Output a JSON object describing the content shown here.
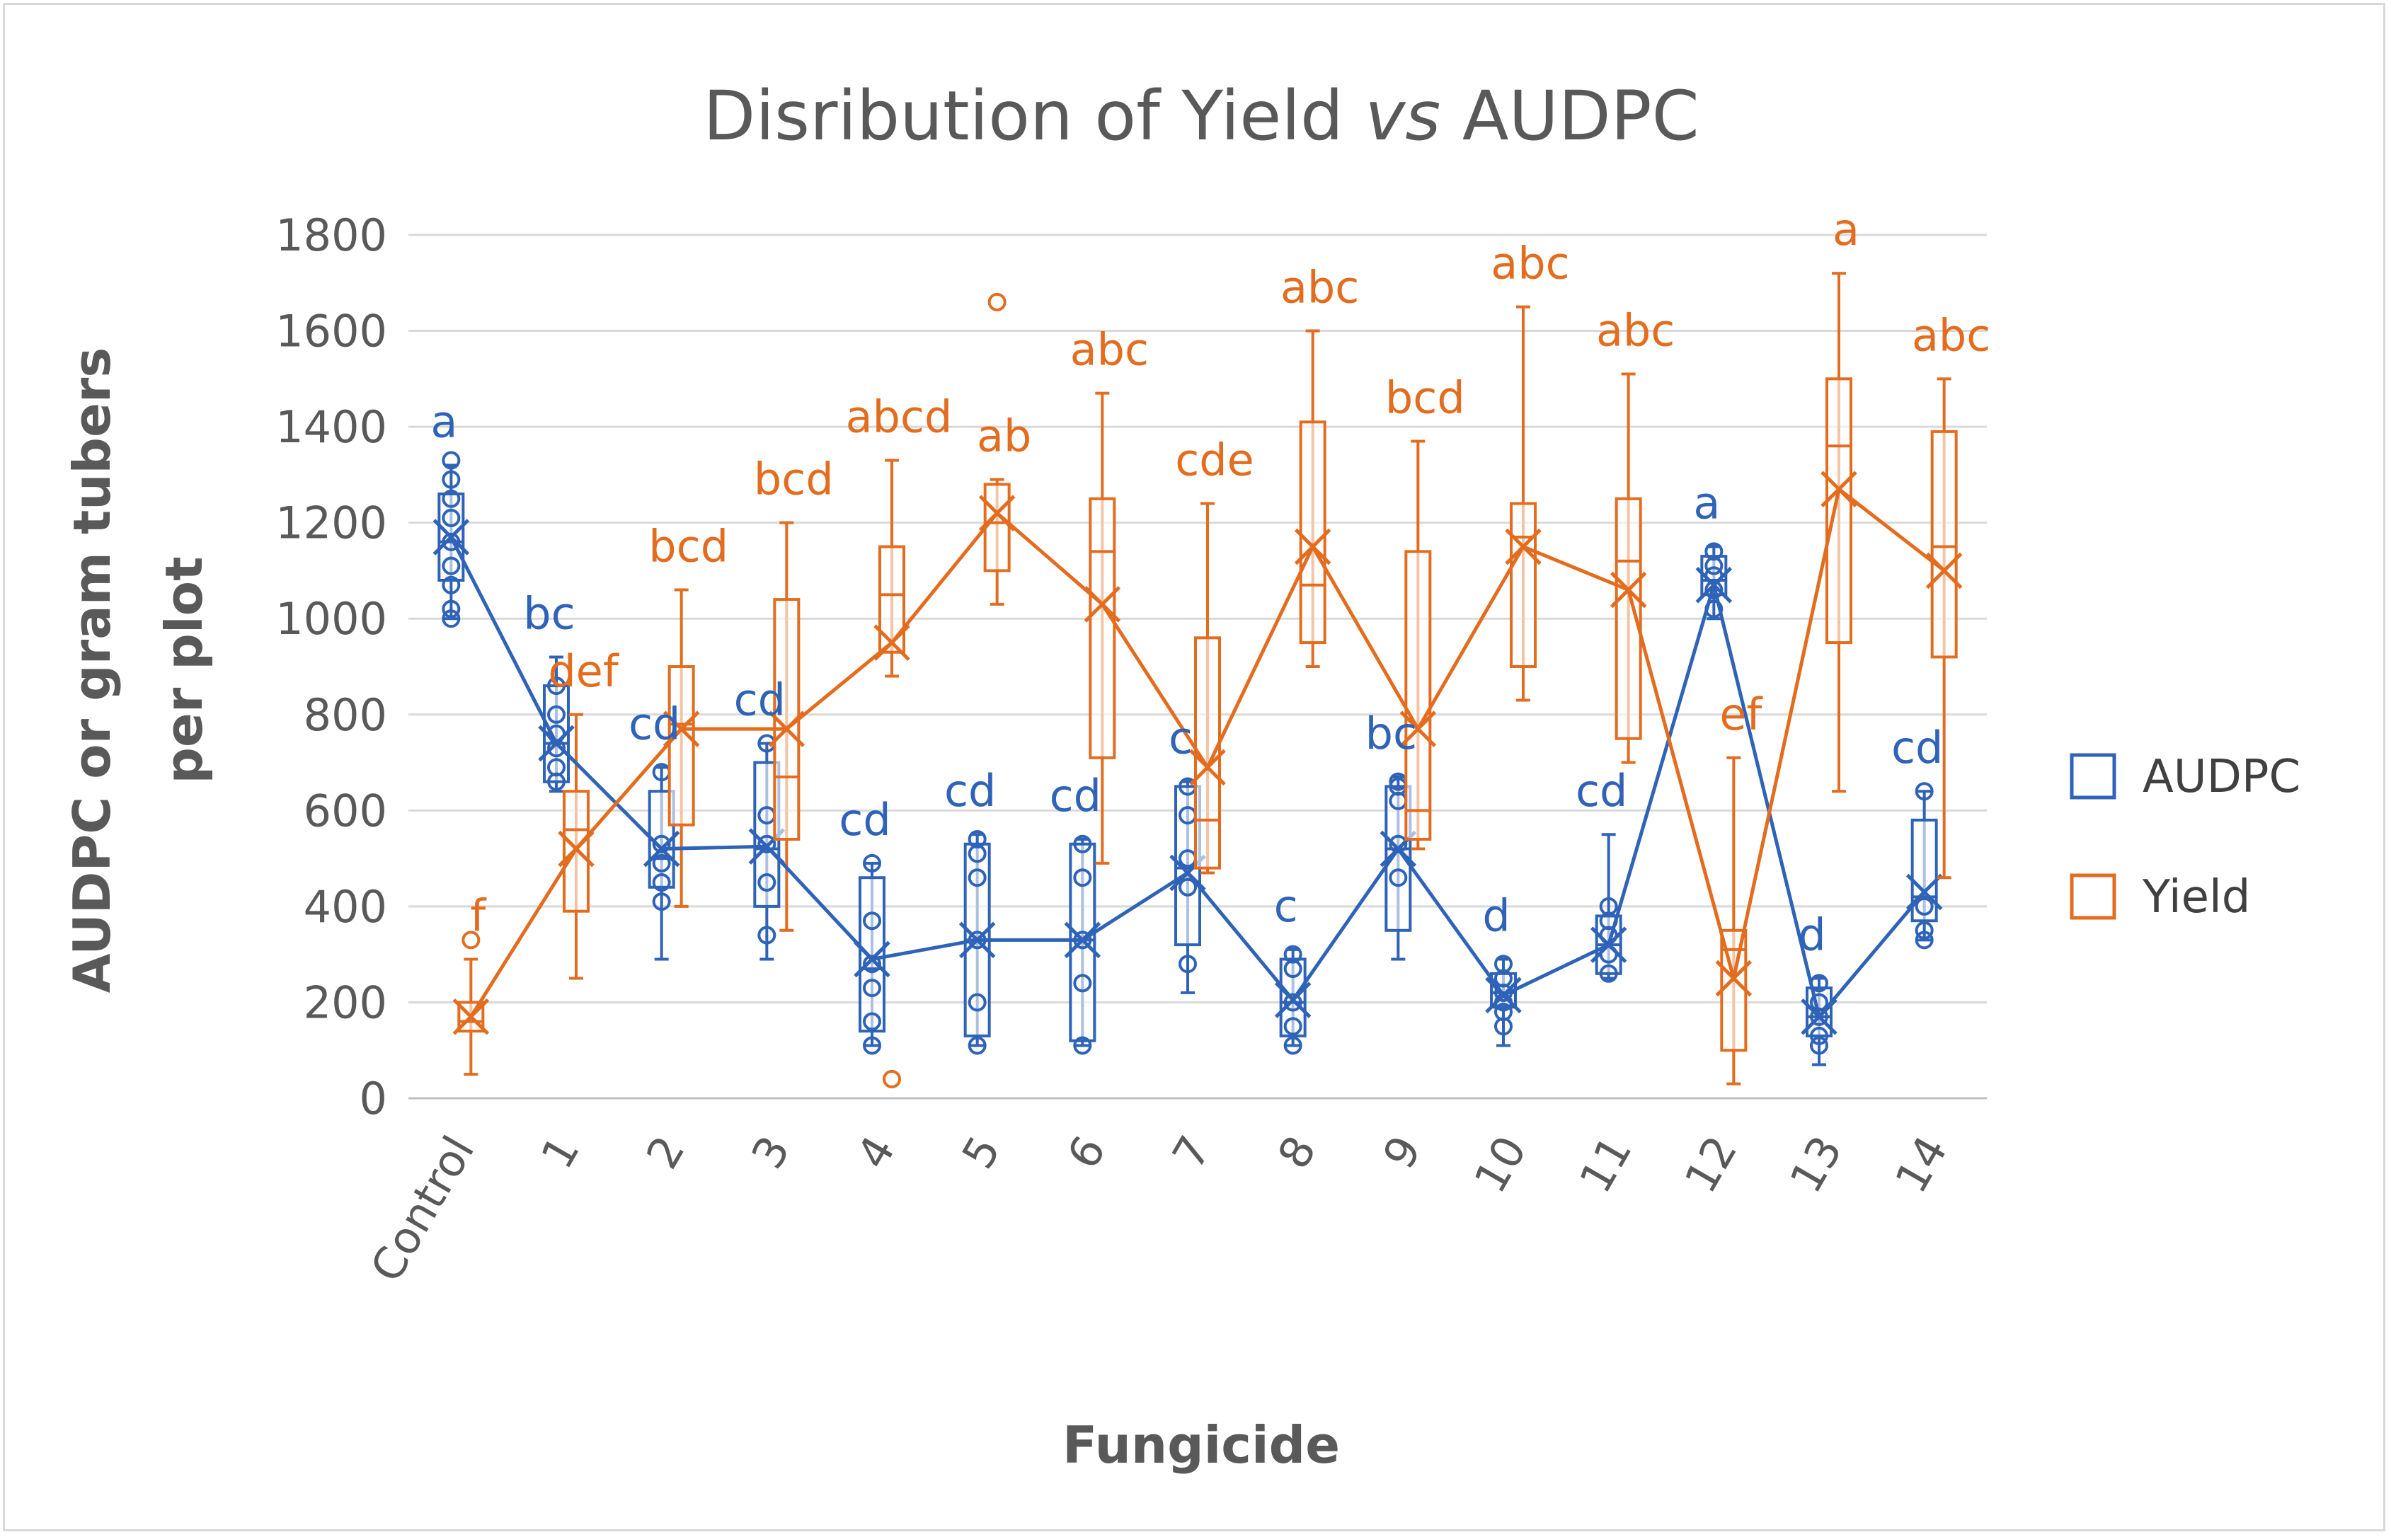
{
  "chart_data": {
    "type": "box",
    "title_parts": [
      "Disribution of Yield ",
      "vs",
      " AUDPC"
    ],
    "xlabel": "Fungicide",
    "ylabel_lines": [
      "AUDPC or gram tubers",
      "per plot"
    ],
    "ylim": [
      0,
      1800
    ],
    "yticks": [
      0,
      200,
      400,
      600,
      800,
      1000,
      1200,
      1400,
      1600,
      1800
    ],
    "gridlines": true,
    "legend_position": "right",
    "categories": [
      "Control",
      "1",
      "2",
      "3",
      "4",
      "5",
      "6",
      "7",
      "8",
      "9",
      "10",
      "11",
      "12",
      "13",
      "14"
    ],
    "series": [
      {
        "name": "AUDPC",
        "color": "#2e63b8",
        "means": [
          1170,
          740,
          520,
          525,
          290,
          330,
          330,
          470,
          205,
          520,
          215,
          320,
          1070,
          170,
          430
        ],
        "q1": [
          1080,
          660,
          440,
          400,
          140,
          130,
          120,
          320,
          130,
          350,
          190,
          260,
          1050,
          130,
          370
        ],
        "median": [
          1160,
          740,
          500,
          520,
          270,
          330,
          330,
          480,
          200,
          520,
          220,
          320,
          1080,
          170,
          420
        ],
        "q3": [
          1260,
          860,
          640,
          700,
          460,
          530,
          530,
          650,
          290,
          650,
          260,
          380,
          1130,
          230,
          580
        ],
        "min": [
          1000,
          640,
          290,
          290,
          110,
          110,
          110,
          220,
          110,
          290,
          110,
          250,
          1000,
          70,
          330
        ],
        "max": [
          1320,
          920,
          690,
          740,
          490,
          550,
          540,
          660,
          310,
          670,
          290,
          550,
          1150,
          250,
          640
        ],
        "points": [
          [
            1000,
            1020,
            1070,
            1110,
            1160,
            1210,
            1250,
            1290,
            1330
          ],
          [
            660,
            690,
            730,
            760,
            800,
            860
          ],
          [
            410,
            450,
            490,
            530,
            680
          ],
          [
            340,
            450,
            530,
            590,
            740
          ],
          [
            110,
            160,
            230,
            280,
            370,
            490
          ],
          [
            110,
            200,
            330,
            460,
            510,
            540
          ],
          [
            110,
            240,
            330,
            460,
            530
          ],
          [
            280,
            440,
            500,
            590,
            650
          ],
          [
            110,
            150,
            200,
            270,
            300
          ],
          [
            460,
            530,
            620,
            650,
            660
          ],
          [
            150,
            180,
            200,
            220,
            250,
            280
          ],
          [
            260,
            300,
            340,
            370,
            400
          ],
          [
            1020,
            1060,
            1090,
            1110,
            1140
          ],
          [
            110,
            130,
            170,
            200,
            240
          ],
          [
            330,
            350,
            400,
            640
          ]
        ],
        "letters": [
          "a",
          "bc",
          "cd",
          "cd",
          "cd",
          "cd",
          "cd",
          "c",
          "c",
          "bc",
          "d",
          "cd",
          "a",
          "d",
          "cd"
        ]
      },
      {
        "name": "Yield",
        "color": "#e36c1f",
        "means": [
          170,
          520,
          770,
          770,
          950,
          1220,
          1030,
          690,
          1150,
          770,
          1150,
          1060,
          250,
          1270,
          1100
        ],
        "q1": [
          140,
          390,
          570,
          540,
          930,
          1100,
          710,
          480,
          950,
          540,
          900,
          750,
          100,
          950,
          920
        ],
        "median": [
          160,
          560,
          780,
          670,
          1050,
          1200,
          1140,
          580,
          1070,
          600,
          1170,
          1120,
          310,
          1360,
          1150
        ],
        "q3": [
          200,
          640,
          900,
          1040,
          1150,
          1280,
          1250,
          960,
          1410,
          1140,
          1240,
          1250,
          350,
          1500,
          1390
        ],
        "min": [
          50,
          250,
          400,
          350,
          880,
          1030,
          490,
          470,
          900,
          520,
          830,
          700,
          30,
          640,
          460
        ],
        "max": [
          290,
          800,
          1060,
          1200,
          1330,
          1290,
          1470,
          1240,
          1600,
          1370,
          1650,
          1510,
          710,
          1720,
          1500
        ],
        "outliers": [
          [
            330
          ],
          [],
          [],
          [],
          [
            40
          ],
          [
            1660
          ],
          [],
          [],
          [],
          [],
          [],
          [],
          [],
          [],
          []
        ],
        "letters": [
          "f",
          "def",
          "bcd",
          "bcd",
          "abcd",
          "ab",
          "abc",
          "cde",
          "abc",
          "bcd",
          "abc",
          "abc",
          "ef",
          "a",
          "abc"
        ]
      }
    ]
  }
}
